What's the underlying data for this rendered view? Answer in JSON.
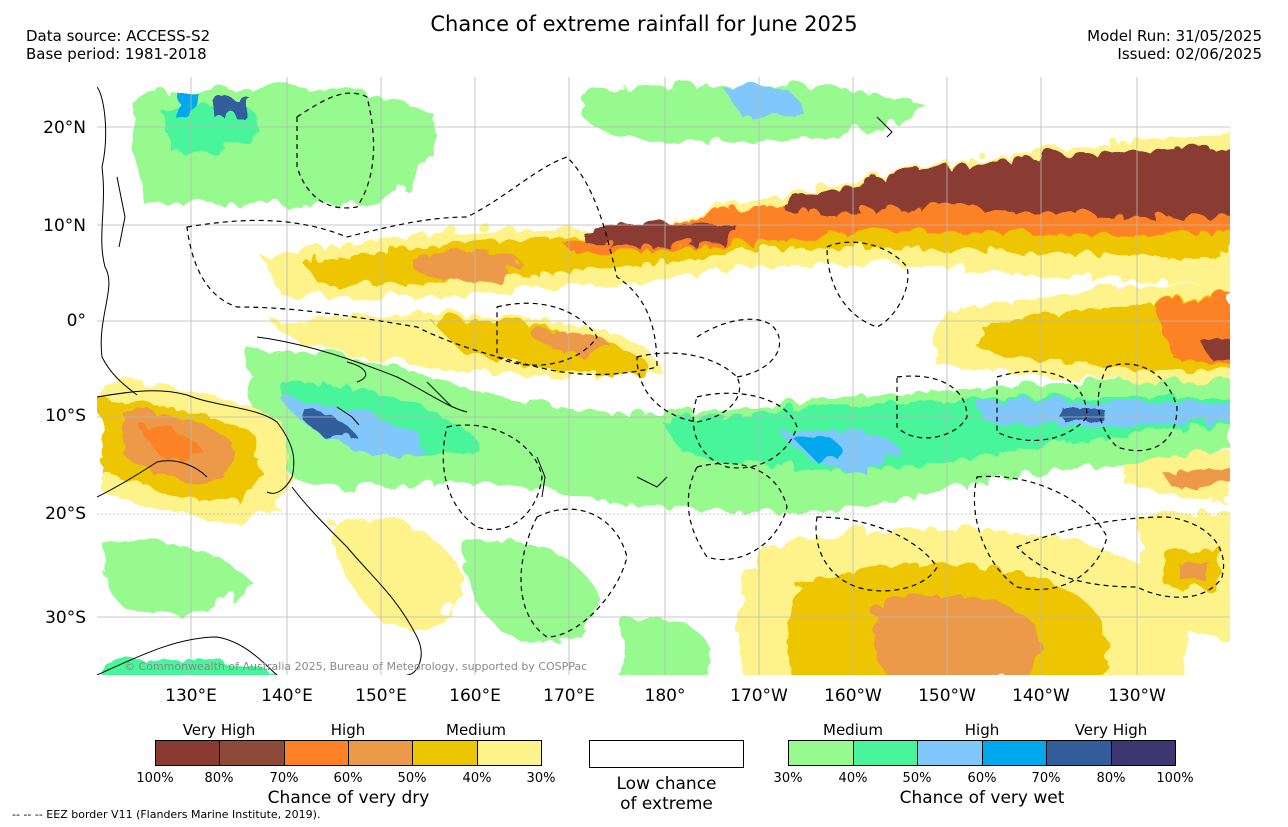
{
  "header": {
    "title": "Chance of extreme rainfall for June 2025",
    "data_source": "Data source: ACCESS-S2",
    "base_period": "Base period: 1981-2018",
    "model_run": "Model Run: 31/05/2025",
    "issued": "Issued: 02/06/2025"
  },
  "map": {
    "lat_labels": [
      "20°N",
      "10°N",
      "0°",
      "10°S",
      "20°S",
      "30°S"
    ],
    "lon_labels": [
      "130°E",
      "140°E",
      "150°E",
      "160°E",
      "170°E",
      "180°",
      "170°W",
      "160°W",
      "150°W",
      "140°W",
      "130°W"
    ],
    "copyright": "© Commonwealth of Australia 2025, Bureau of Meteorology, supported by COSPPac",
    "eez_note": "--  --  -- EEZ border V11 (Flanders Marine Institute, 2019)."
  },
  "legend": {
    "dry": {
      "title": "Chance of very dry",
      "categories": [
        "Very High",
        "High",
        "Medium"
      ],
      "ticks": [
        "100%",
        "80%",
        "70%",
        "60%",
        "50%",
        "40%",
        "30%"
      ],
      "colors": [
        "#8a3a30",
        "#8d4a38",
        "#fd8226",
        "#ec9a48",
        "#edc500",
        "#fef38a"
      ]
    },
    "low": {
      "label_line1": "Low chance",
      "label_line2": "of extreme"
    },
    "wet": {
      "title": "Chance of very wet",
      "categories": [
        "Medium",
        "High",
        "Very High"
      ],
      "ticks": [
        "30%",
        "40%",
        "50%",
        "60%",
        "70%",
        "80%",
        "100%"
      ],
      "colors": [
        "#96fa8f",
        "#48f59a",
        "#80c8fb",
        "#00a9ee",
        "#325f9c",
        "#3d3670"
      ]
    }
  }
}
